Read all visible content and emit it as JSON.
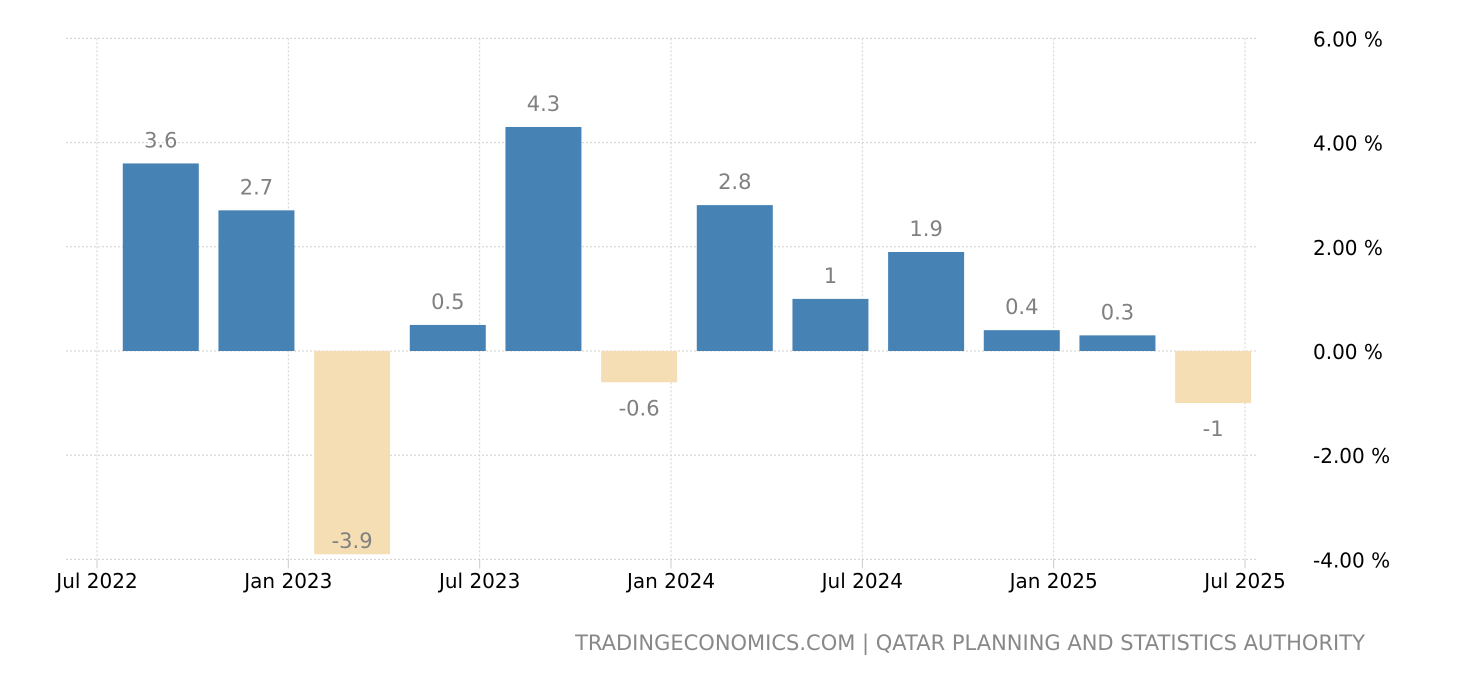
{
  "chart_data": {
    "type": "bar",
    "title": "",
    "xlabel": "",
    "ylabel": "",
    "x": [
      "2022-09",
      "2022-12",
      "2023-03",
      "2023-06",
      "2023-09",
      "2023-12",
      "2024-03",
      "2024-06",
      "2024-09",
      "2024-12",
      "2025-03",
      "2025-06"
    ],
    "values": [
      3.6,
      2.7,
      -3.9,
      0.5,
      4.3,
      -0.6,
      2.8,
      1,
      1.9,
      0.4,
      0.3,
      -1
    ],
    "data_labels": [
      "3.6",
      "2.7",
      "-3.9",
      "0.5",
      "4.3",
      "-0.6",
      "2.8",
      "1",
      "1.9",
      "0.4",
      "0.3",
      "-1"
    ],
    "ylim": [
      -4,
      6
    ],
    "y_ticks": [
      6,
      4,
      2,
      0,
      -2,
      -4
    ],
    "y_tick_labels": [
      "6.00 %",
      "4.00 %",
      "2.00 %",
      "0.00 %",
      "-2.00 %",
      "-4.00 %"
    ],
    "x_ticks": [
      "2022-07",
      "2023-01",
      "2023-07",
      "2024-01",
      "2024-07",
      "2025-01",
      "2025-07"
    ],
    "x_tick_labels": [
      "Jul 2022",
      "Jan 2023",
      "Jul 2023",
      "Jan 2024",
      "Jul 2024",
      "Jan 2025",
      "Jul 2025"
    ],
    "grid": true,
    "legend": "none",
    "colors": {
      "positive": "#4682b4",
      "negative": "#f5deb3",
      "label": "#808080",
      "grid": "#d0d0d0"
    }
  },
  "footer": {
    "source": "TRADINGECONOMICS.COM | QATAR PLANNING AND STATISTICS AUTHORITY"
  }
}
